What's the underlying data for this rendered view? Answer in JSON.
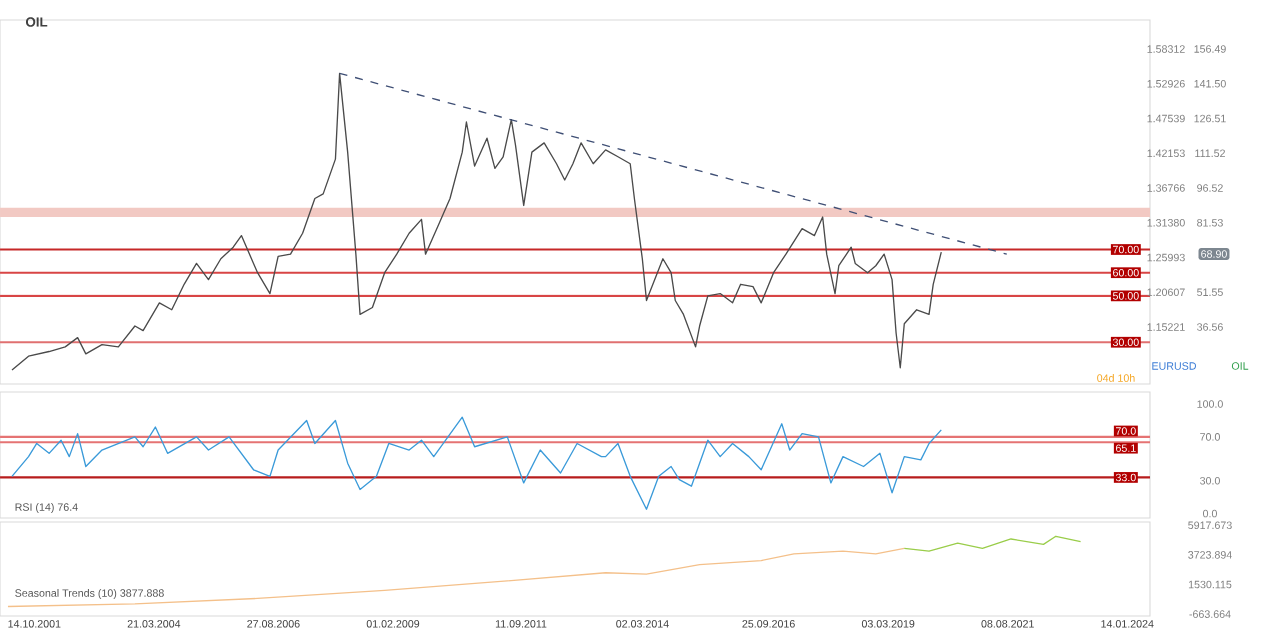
{
  "chart_data": [
    {
      "type": "line",
      "title": "OIL",
      "xlim": [
        "2001-02-01",
        "2024-07-01"
      ],
      "ylim": [
        12,
        169
      ],
      "yticks": [
        36.56,
        51.55,
        {
          "value": 81.53,
          "label": "81.53"
        },
        96.52,
        111.52,
        126.51,
        {
          "value": 141.5,
          "label": "141.50"
        },
        156.49
      ],
      "y2lim": [
        1.0639,
        1.6281
      ],
      "y2ticks": [
        1.15221,
        1.20607,
        1.25993,
        {
          "value": 1.3138,
          "label": "1.31380"
        },
        1.36766,
        1.42153,
        1.47539,
        1.52926,
        1.58312
      ],
      "tick_labels": "y",
      "series": [
        {
          "color": "#4a4a4a",
          "x": [
            "2001-05",
            "2001-09",
            "2002-02",
            "2002-06",
            "2002-09",
            "2002-11",
            "2003-03",
            "2003-07",
            "2003-11",
            "2004-01",
            "2004-05",
            "2004-08",
            "2004-11",
            "2005-02",
            "2005-05",
            "2005-08",
            "2005-11",
            "2006-01",
            "2006-04",
            "2006-05",
            "2006-08",
            "2006-10",
            "2007-01",
            "2007-04",
            "2007-07",
            "2007-09",
            "2007-12",
            "2008-01",
            "2008-03",
            "2008-05",
            "2008-06",
            "2008-09",
            "2008-12",
            "2009-03",
            "2009-06",
            "2009-09",
            "2009-10",
            "2010-01",
            "2010-04",
            "2010-07",
            "2010-08",
            "2010-10",
            "2011-01",
            "2011-03",
            "2011-05",
            "2011-07",
            "2011-08",
            "2011-10",
            "2011-12",
            "2012-03",
            "2012-06",
            "2012-08",
            "2012-10",
            "2012-12",
            "2013-03",
            "2013-06",
            "2013-09",
            "2013-12",
            "2014-01",
            "2014-03",
            "2014-04",
            "2014-06",
            "2014-08",
            "2014-10",
            "2014-11",
            "2015-01",
            "2015-04",
            "2015-05",
            "2015-07",
            "2015-10",
            "2016-01",
            "2016-03",
            "2016-06",
            "2016-08",
            "2016-11",
            "2017-02",
            "2017-06",
            "2017-09",
            "2017-11",
            "2017-12",
            "2018-02",
            "2018-03",
            "2018-06",
            "2018-07",
            "2018-10",
            "2018-12",
            "2019-02",
            "2019-04",
            "2019-05",
            "2019-06",
            "2019-07",
            "2019-10",
            "2020-01",
            "2020-02",
            "2020-04"
          ],
          "values": [
            18,
            24,
            26,
            28,
            32,
            25,
            29,
            28,
            37,
            35,
            47,
            44,
            55,
            64,
            57,
            66,
            71,
            76,
            64,
            60,
            51,
            67,
            68,
            77,
            92,
            94,
            109,
            146,
            112,
            68,
            42,
            45,
            60,
            68,
            77,
            83,
            68,
            80,
            92,
            112,
            125,
            106,
            118,
            105,
            110,
            126,
            115,
            89,
            112,
            116,
            107,
            100,
            107,
            116,
            107,
            113,
            110,
            107,
            92,
            66,
            48,
            57,
            66,
            60,
            48,
            42,
            28,
            37,
            50,
            51,
            47,
            55,
            54,
            47,
            60,
            68,
            79,
            76,
            84,
            68,
            51,
            63,
            71,
            64,
            60,
            63,
            68,
            57,
            34,
            19,
            38,
            44,
            42,
            55,
            68.9
          ]
        },
        {
          "color": "#3f4f75",
          "line_style": "dashed",
          "x": [
            "2008-01",
            "2021-08"
          ],
          "values": [
            146,
            68
          ]
        }
      ],
      "ref_lines": [
        {
          "axis": "y",
          "value": 70,
          "label": "70.00",
          "color": "#c62828"
        },
        {
          "axis": "y",
          "value": 60,
          "label": "60.00",
          "color": "#d84545"
        },
        {
          "axis": "y",
          "value": 50,
          "label": "50.00",
          "color": "#d84545"
        },
        {
          "axis": "y",
          "value": 30,
          "label": "30.00",
          "color": "#e07070"
        }
      ],
      "bands": [
        {
          "axis": "y",
          "from": 84,
          "to": 88,
          "color": "#f2c9c3"
        }
      ],
      "annotations": [
        "04d 10h",
        "EURUSD",
        "OIL",
        "68.90"
      ]
    },
    {
      "type": "line",
      "xlim": [
        "2001-02-01",
        "2024-07-01"
      ],
      "ylim": [
        -4,
        111
      ],
      "yticks": [
        {
          "value": 0,
          "label": "0.0"
        },
        {
          "value": 30,
          "label": "30.0"
        },
        {
          "value": 70,
          "label": "70.0"
        },
        {
          "value": 100,
          "label": "100.0"
        }
      ],
      "tick_labels": "y",
      "series": [
        {
          "color": "#3a9ad9",
          "x": [
            "2001-05",
            "2001-09",
            "2001-11",
            "2002-02",
            "2002-05",
            "2002-07",
            "2002-09",
            "2002-11",
            "2003-03",
            "2003-11",
            "2004-01",
            "2004-04",
            "2004-07",
            "2005-02",
            "2005-05",
            "2005-10",
            "2006-04",
            "2006-08",
            "2006-10",
            "2007-05",
            "2007-07",
            "2007-12",
            "2008-03",
            "2008-06",
            "2008-10",
            "2009-01",
            "2009-06",
            "2009-09",
            "2009-12",
            "2010-07",
            "2010-10",
            "2011-06",
            "2011-10",
            "2012-02",
            "2012-07",
            "2012-11",
            "2013-05",
            "2013-06",
            "2013-09",
            "2013-12",
            "2014-04",
            "2014-07",
            "2014-10",
            "2014-12",
            "2015-03",
            "2015-07",
            "2015-10",
            "2016-01",
            "2016-05",
            "2016-08",
            "2017-01",
            "2017-03",
            "2017-06",
            "2017-10",
            "2018-01",
            "2018-04",
            "2018-09",
            "2019-01",
            "2019-04",
            "2019-07",
            "2019-11",
            "2020-01",
            "2020-04"
          ],
          "values": [
            34,
            52,
            64,
            55,
            67,
            52,
            73,
            43,
            58,
            70,
            61,
            79,
            55,
            70,
            58,
            70,
            40,
            34,
            58,
            85,
            64,
            85,
            46,
            22,
            34,
            64,
            58,
            67,
            52,
            88,
            61,
            70,
            28,
            58,
            37,
            64,
            52,
            52,
            64,
            34,
            4,
            34,
            43,
            31,
            25,
            67,
            52,
            64,
            52,
            40,
            82,
            58,
            73,
            70,
            28,
            52,
            43,
            55,
            19,
            52,
            49,
            64,
            76.4
          ]
        }
      ],
      "ref_lines": [
        {
          "axis": "y",
          "value": 70,
          "label": "70.0",
          "color": "#e57373"
        },
        {
          "axis": "y",
          "value": 65.1,
          "label": "65.1",
          "color": "#e57373"
        },
        {
          "axis": "y",
          "value": 33,
          "label": "33.0",
          "color": "#b71c1c"
        }
      ],
      "annotations": [
        "RSI (14) 76.4"
      ]
    },
    {
      "type": "line",
      "xlim": [
        "2001-02-01",
        "2024-07-01"
      ],
      "ylim": [
        -800,
        6160
      ],
      "xticks": [
        {
          "value": "2001-10-14",
          "label": "14.10.2001"
        },
        {
          "value": "2004-03-21",
          "label": "21.03.2004"
        },
        {
          "value": "2006-08-27",
          "label": "27.08.2006"
        },
        {
          "value": "2009-02-01",
          "label": "01.02.2009"
        },
        {
          "value": "2011-09-11",
          "label": "11.09.2011"
        },
        {
          "value": "2014-03-02",
          "label": "02.03.2014"
        },
        {
          "value": "2016-09-25",
          "label": "25.09.2016"
        },
        {
          "value": "2019-03-03",
          "label": "03.03.2019"
        },
        {
          "value": "2021-08-08",
          "label": "08.08.2021"
        },
        {
          "value": "2024-01-14",
          "label": "14.01.2024"
        }
      ],
      "yticks": [
        -663.664,
        1530.115,
        3723.894,
        5917.673
      ],
      "series": [
        {
          "color": "#f4c08a",
          "x": [
            "2001-04",
            "2003-11",
            "2006-05",
            "2008-12",
            "2011-06",
            "2013-06",
            "2014-04",
            "2015-05",
            "2016-08",
            "2017-04",
            "2018-04",
            "2018-12",
            "2019-07"
          ],
          "values": [
            -100,
            100,
            500,
            1100,
            1800,
            2400,
            2300,
            3000,
            3300,
            3800,
            4000,
            3800,
            4200
          ]
        },
        {
          "color": "#9acd4a",
          "x": [
            "2019-07",
            "2020-01",
            "2020-08",
            "2021-02",
            "2021-09",
            "2022-05",
            "2022-08",
            "2023-02"
          ],
          "values": [
            4200,
            4000,
            4600,
            4200,
            4900,
            4500,
            5100,
            4700
          ]
        }
      ],
      "annotations": [
        "Seasonal Trends (10) 3877.888"
      ]
    }
  ]
}
